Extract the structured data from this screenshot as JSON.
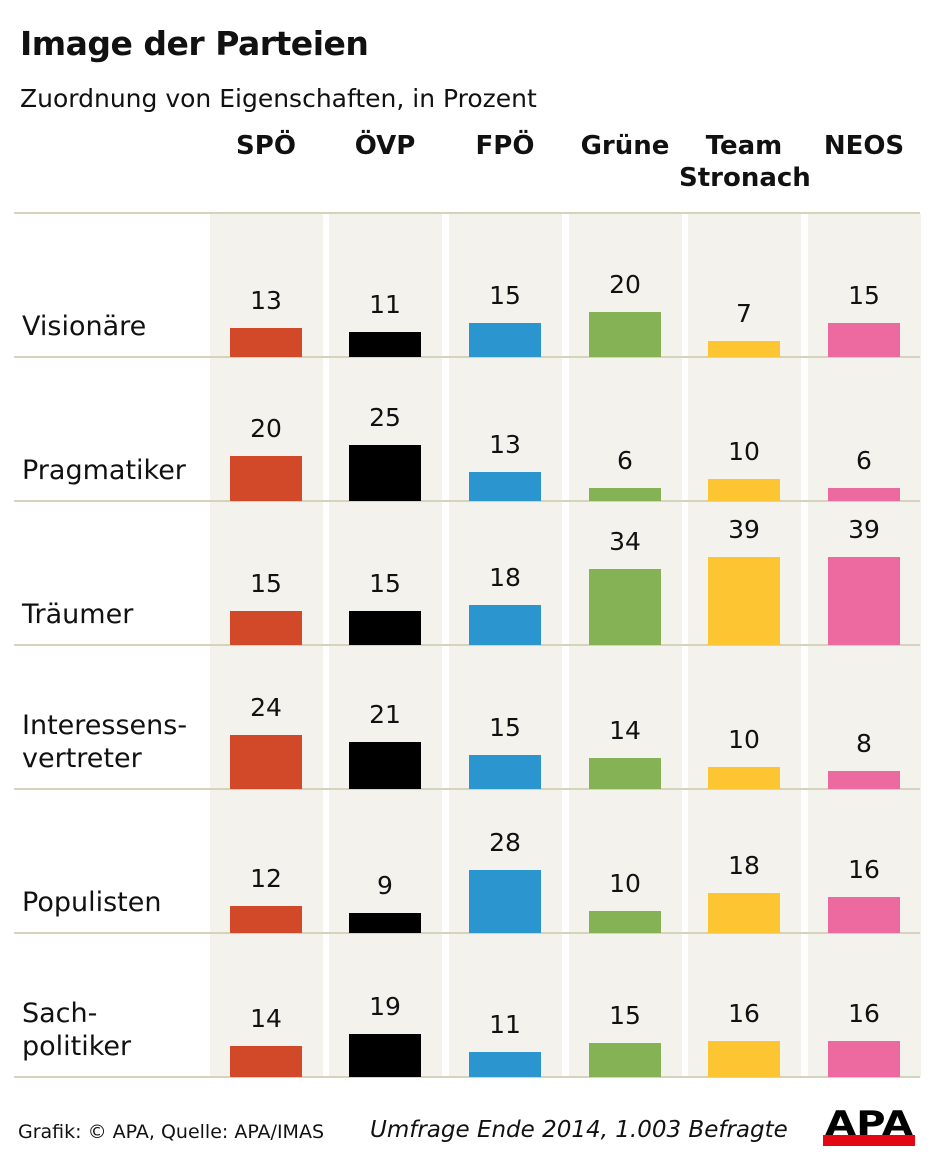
{
  "chart_data": {
    "type": "bar",
    "title": "Image der Parteien",
    "subtitle": "Zuordnung von Eigenschaften, in Prozent",
    "parties": [
      "SPÖ",
      "ÖVP",
      "FPÖ",
      "Grüne",
      "Team\nStronach",
      "NEOS"
    ],
    "colors": [
      "#d2492a",
      "#000000",
      "#2a95cf",
      "#84b255",
      "#fcc531",
      "#ec6aa0"
    ],
    "categories": [
      "Visionäre",
      "Pragmatiker",
      "Träumer",
      "Interessens-\nvertreter",
      "Populisten",
      "Sach-\npolitiker"
    ],
    "values": [
      [
        13,
        11,
        15,
        20,
        7,
        15
      ],
      [
        20,
        25,
        13,
        6,
        10,
        6
      ],
      [
        15,
        15,
        18,
        34,
        39,
        39
      ],
      [
        24,
        21,
        15,
        14,
        10,
        8
      ],
      [
        12,
        9,
        28,
        10,
        18,
        16
      ],
      [
        14,
        19,
        11,
        15,
        16,
        16
      ]
    ]
  },
  "footer": {
    "credit": "Grafik: © APA, Quelle: APA/IMAS",
    "note": "Umfrage Ende 2014, 1.003 Befragte",
    "logo_text": "APA"
  }
}
